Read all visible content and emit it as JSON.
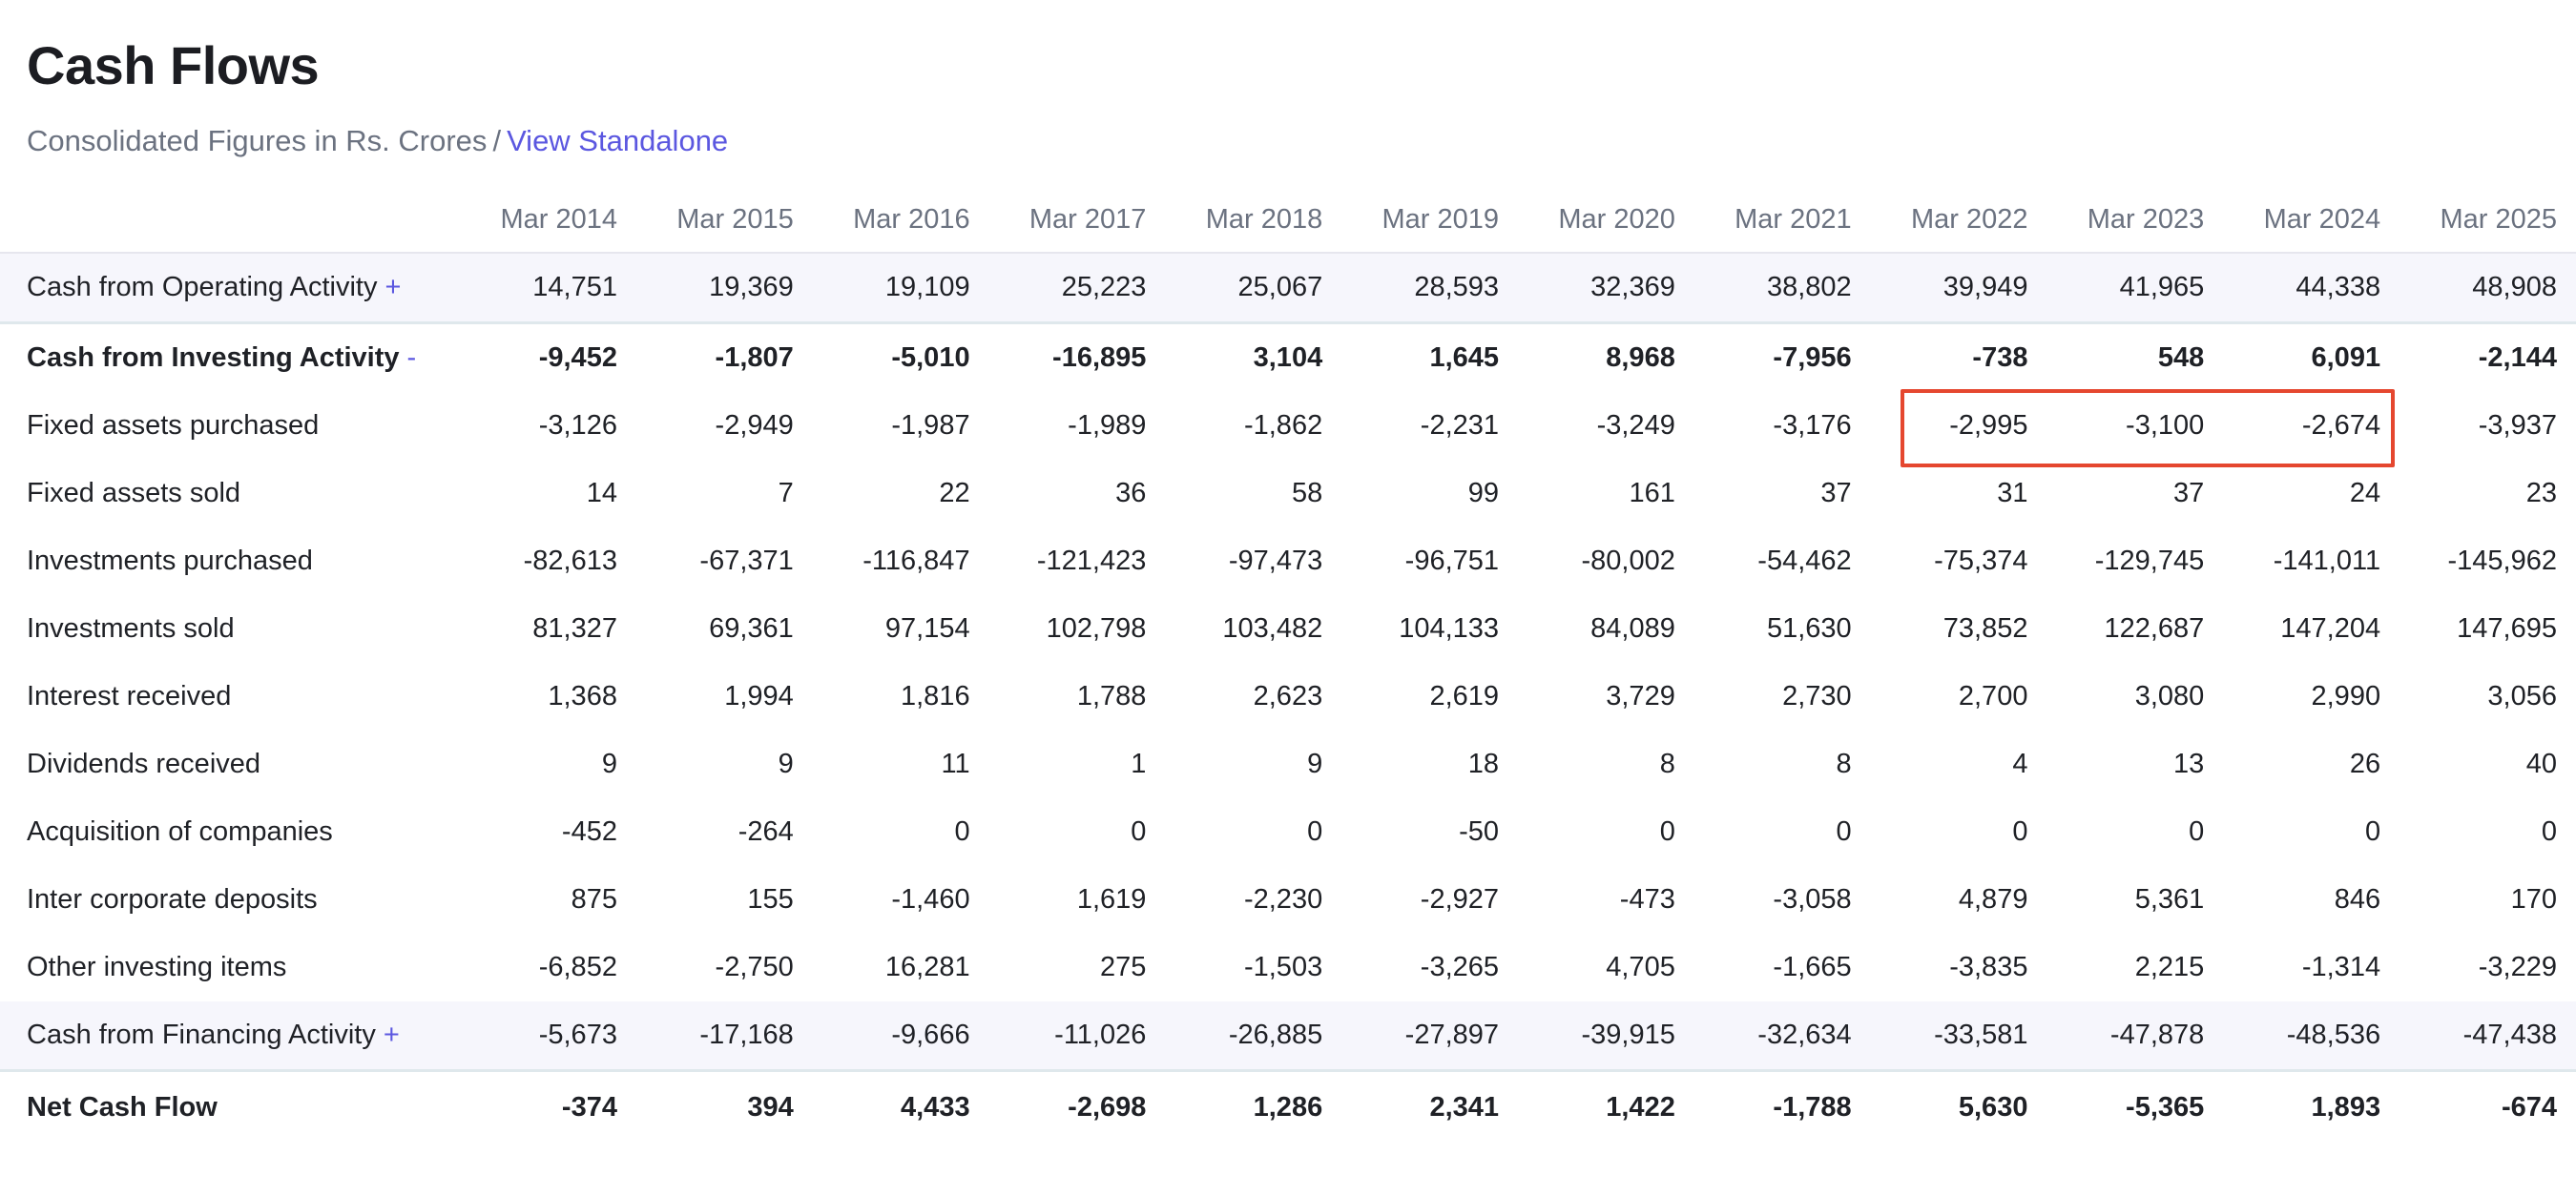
{
  "header": {
    "title": "Cash Flows",
    "subtitle_text": "Consolidated Figures in Rs. Crores",
    "separator": "/",
    "standalone_link": "View Standalone"
  },
  "table": {
    "columns": [
      "Mar 2014",
      "Mar 2015",
      "Mar 2016",
      "Mar 2017",
      "Mar 2018",
      "Mar 2019",
      "Mar 2020",
      "Mar 2021",
      "Mar 2022",
      "Mar 2023",
      "Mar 2024",
      "Mar 2025"
    ],
    "rows": [
      {
        "label": "Cash from Operating Activity",
        "toggle": "+",
        "values": [
          "14,751",
          "19,369",
          "19,109",
          "25,223",
          "25,067",
          "28,593",
          "32,369",
          "38,802",
          "39,949",
          "41,965",
          "44,338",
          "48,908"
        ]
      },
      {
        "label": "Cash from Investing Activity",
        "toggle": "-",
        "values": [
          "-9,452",
          "-1,807",
          "-5,010",
          "-16,895",
          "3,104",
          "1,645",
          "8,968",
          "-7,956",
          "-738",
          "548",
          "6,091",
          "-2,144"
        ]
      },
      {
        "label": "Fixed assets purchased",
        "values": [
          "-3,126",
          "-2,949",
          "-1,987",
          "-1,989",
          "-1,862",
          "-2,231",
          "-3,249",
          "-3,176",
          "-2,995",
          "-3,100",
          "-2,674",
          "-3,937"
        ]
      },
      {
        "label": "Fixed assets sold",
        "values": [
          "14",
          "7",
          "22",
          "36",
          "58",
          "99",
          "161",
          "37",
          "31",
          "37",
          "24",
          "23"
        ]
      },
      {
        "label": "Investments purchased",
        "values": [
          "-82,613",
          "-67,371",
          "-116,847",
          "-121,423",
          "-97,473",
          "-96,751",
          "-80,002",
          "-54,462",
          "-75,374",
          "-129,745",
          "-141,011",
          "-145,962"
        ]
      },
      {
        "label": "Investments sold",
        "values": [
          "81,327",
          "69,361",
          "97,154",
          "102,798",
          "103,482",
          "104,133",
          "84,089",
          "51,630",
          "73,852",
          "122,687",
          "147,204",
          "147,695"
        ]
      },
      {
        "label": "Interest received",
        "values": [
          "1,368",
          "1,994",
          "1,816",
          "1,788",
          "2,623",
          "2,619",
          "3,729",
          "2,730",
          "2,700",
          "3,080",
          "2,990",
          "3,056"
        ]
      },
      {
        "label": "Dividends received",
        "values": [
          "9",
          "9",
          "11",
          "1",
          "9",
          "18",
          "8",
          "8",
          "4",
          "13",
          "26",
          "40"
        ]
      },
      {
        "label": "Acquisition of companies",
        "values": [
          "-452",
          "-264",
          "0",
          "0",
          "0",
          "-50",
          "0",
          "0",
          "0",
          "0",
          "0",
          "0"
        ]
      },
      {
        "label": "Inter corporate deposits",
        "values": [
          "875",
          "155",
          "-1,460",
          "1,619",
          "-2,230",
          "-2,927",
          "-473",
          "-3,058",
          "4,879",
          "5,361",
          "846",
          "170"
        ]
      },
      {
        "label": "Other investing items",
        "values": [
          "-6,852",
          "-2,750",
          "16,281",
          "275",
          "-1,503",
          "-3,265",
          "4,705",
          "-1,665",
          "-3,835",
          "2,215",
          "-1,314",
          "-3,229"
        ]
      },
      {
        "label": "Cash from Financing Activity",
        "toggle": "+",
        "values": [
          "-5,673",
          "-17,168",
          "-9,666",
          "-11,026",
          "-26,885",
          "-27,897",
          "-39,915",
          "-32,634",
          "-33,581",
          "-47,878",
          "-48,536",
          "-47,438"
        ]
      },
      {
        "label": "Net Cash Flow",
        "values": [
          "-374",
          "394",
          "4,433",
          "-2,698",
          "1,286",
          "2,341",
          "1,422",
          "-1,788",
          "5,630",
          "-5,365",
          "1,893",
          "-674"
        ]
      }
    ]
  },
  "annotation": {
    "highlight_color": "#e5472f"
  }
}
